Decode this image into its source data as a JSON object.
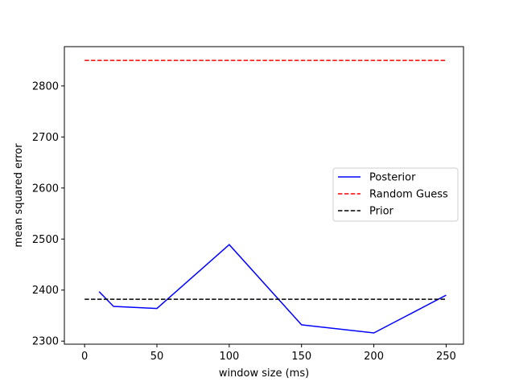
{
  "chart_data": {
    "type": "line",
    "title": "",
    "xlabel": "window size (ms)",
    "ylabel": "mean squared error",
    "xlim": [
      -14,
      262
    ],
    "ylim": [
      2294,
      2877
    ],
    "xticks": [
      0,
      50,
      100,
      150,
      200,
      250
    ],
    "yticks": [
      2300,
      2400,
      2500,
      2600,
      2700,
      2800
    ],
    "grid": false,
    "legend_position": "center-right",
    "series": [
      {
        "name": "Posterior",
        "color": "#0000ff",
        "style": "solid",
        "x": [
          10,
          20,
          50,
          100,
          150,
          200,
          250
        ],
        "y": [
          2397,
          2368,
          2364,
          2489,
          2332,
          2316,
          2390
        ]
      },
      {
        "name": "Random Guess",
        "color": "#ff0000",
        "style": "dashed",
        "x": [
          0,
          250
        ],
        "y": [
          2850,
          2850
        ]
      },
      {
        "name": "Prior",
        "color": "#000000",
        "style": "dashed",
        "x": [
          0,
          250
        ],
        "y": [
          2382,
          2382
        ]
      }
    ]
  }
}
